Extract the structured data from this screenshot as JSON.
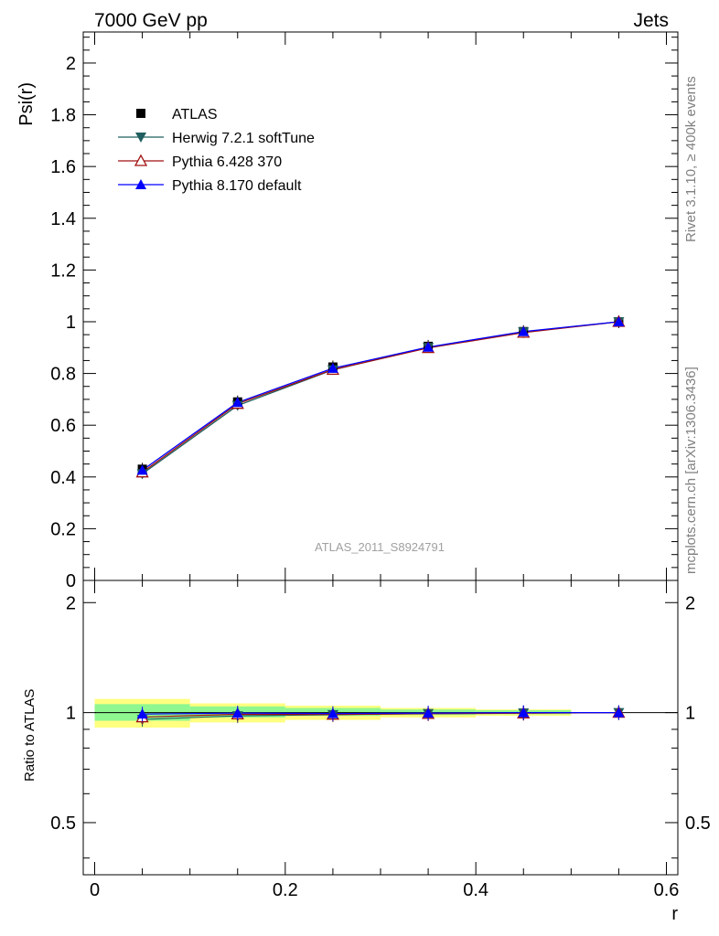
{
  "header": {
    "left": "7000 GeV pp",
    "right": "Jets"
  },
  "side": {
    "rivet": "Rivet 3.1.10, ≥ 400k events",
    "mcplots": "mcplots.cern.ch [arXiv:1306.3436]"
  },
  "analysis_id": "ATLAS_2011_S8924791",
  "colors": {
    "atlas": "#000000",
    "herwig": "#1f5f5f",
    "pythia6": "#a01010",
    "pythia8": "#0000ff",
    "band_inner": "#8ff78f",
    "band_outer": "#ffff80"
  },
  "chart_data": [
    {
      "type": "line",
      "title": "",
      "xlabel": "r",
      "ylabel": "Psi(r)",
      "xlim": [
        -0.012,
        0.612
      ],
      "ylim": [
        0,
        2.12
      ],
      "x_ticks": [
        "0",
        "0.2",
        "0.4",
        "0.6"
      ],
      "y_ticks": [
        "0",
        "0.2",
        "0.4",
        "0.6",
        "0.8",
        "1",
        "1.2",
        "1.4",
        "1.6",
        "1.8",
        "2"
      ],
      "x": [
        0.05,
        0.15,
        0.25,
        0.35,
        0.45,
        0.55
      ],
      "legend": [
        {
          "name": "ATLAS",
          "marker": "square"
        },
        {
          "name": "Herwig 7.2.1 softTune",
          "marker": "triangle-down"
        },
        {
          "name": "Pythia 6.428 370",
          "marker": "triangle-open"
        },
        {
          "name": "Pythia 8.170 default",
          "marker": "triangle-up"
        }
      ],
      "series": [
        {
          "name": "ATLAS",
          "values": [
            0.43,
            0.69,
            0.825,
            0.905,
            0.962,
            1.0
          ]
        },
        {
          "name": "Herwig 7.2.1 softTune",
          "values": [
            0.412,
            0.676,
            0.814,
            0.9,
            0.96,
            1.0
          ]
        },
        {
          "name": "Pythia 6.428 370",
          "values": [
            0.418,
            0.683,
            0.815,
            0.899,
            0.958,
            1.0
          ]
        },
        {
          "name": "Pythia 8.170 default",
          "values": [
            0.426,
            0.688,
            0.82,
            0.902,
            0.962,
            1.0
          ]
        }
      ]
    },
    {
      "type": "line",
      "title": "",
      "xlabel": "r",
      "ylabel": "Ratio to ATLAS",
      "xlim": [
        -0.012,
        0.612
      ],
      "ylim": [
        0.36,
        2.3
      ],
      "y_ticks": [
        "0.5",
        "1",
        "2"
      ],
      "x": [
        0.05,
        0.15,
        0.25,
        0.35,
        0.45,
        0.55
      ],
      "band_edges": [
        0.0,
        0.1,
        0.2,
        0.3,
        0.4,
        0.5
      ],
      "band_inner": [
        [
          0.95,
          1.055
        ],
        [
          0.97,
          1.04
        ],
        [
          0.98,
          1.03
        ],
        [
          0.985,
          1.02
        ],
        [
          0.99,
          1.015
        ]
      ],
      "band_outer": [
        [
          0.91,
          1.09
        ],
        [
          0.94,
          1.06
        ],
        [
          0.955,
          1.045
        ],
        [
          0.97,
          1.03
        ],
        [
          0.98,
          1.02
        ]
      ],
      "series": [
        {
          "name": "Herwig 7.2.1 softTune",
          "values": [
            0.958,
            0.98,
            0.987,
            0.994,
            0.998,
            1.0
          ]
        },
        {
          "name": "Pythia 6.428 370",
          "values": [
            0.972,
            0.99,
            0.988,
            0.993,
            0.996,
            1.0
          ]
        },
        {
          "name": "Pythia 8.170 default",
          "values": [
            0.991,
            0.997,
            0.994,
            0.997,
            1.0,
            1.0
          ]
        }
      ]
    }
  ]
}
